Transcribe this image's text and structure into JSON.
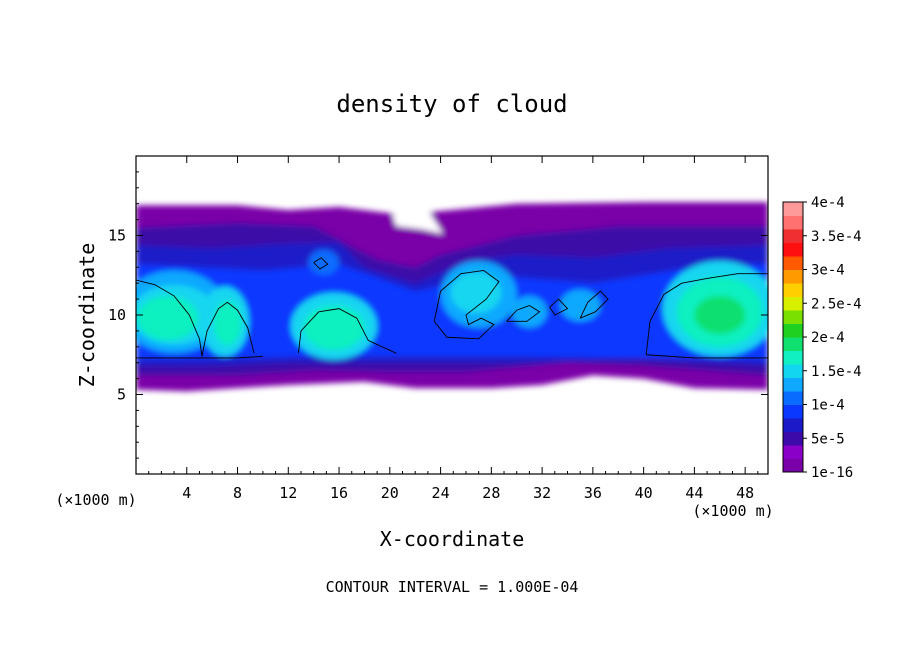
{
  "chart_data": {
    "type": "heatmap",
    "title": "density of cloud",
    "xlabel": "X-coordinate",
    "ylabel": "Z-coordinate",
    "x_unit": "(×1000 m)",
    "y_unit": "(×1000 m)",
    "xlim": [
      0,
      49.8
    ],
    "ylim": [
      0,
      20
    ],
    "x_ticks": [
      4,
      8,
      12,
      16,
      20,
      24,
      28,
      32,
      36,
      40,
      44,
      48
    ],
    "y_ticks": [
      5,
      10,
      15
    ],
    "footer": "CONTOUR INTERVAL = 1.000E-04",
    "contour_levels": [
      0.0001
    ],
    "colorbar": {
      "ticks": [
        {
          "label": "1e-16",
          "value": 1e-16
        },
        {
          "label": "5e-5",
          "value": 5e-05
        },
        {
          "label": "1e-4",
          "value": 0.0001
        },
        {
          "label": "1.5e-4",
          "value": 0.00015
        },
        {
          "label": "2e-4",
          "value": 0.0002
        },
        {
          "label": "2.5e-4",
          "value": 0.00025
        },
        {
          "label": "3e-4",
          "value": 0.0003
        },
        {
          "label": "3.5e-4",
          "value": 0.00035
        },
        {
          "label": "4e-4",
          "value": 0.0004
        }
      ],
      "colors": [
        "#7a00a8",
        "#8a00c8",
        "#3c0aa8",
        "#1a1ac8",
        "#0a38ff",
        "#0a6cff",
        "#0ea8ff",
        "#12d6f0",
        "#10f0c0",
        "#10e070",
        "#20d020",
        "#7ae000",
        "#d8f000",
        "#ffd000",
        "#ff9a00",
        "#ff5a00",
        "#ff1010",
        "#f03030",
        "#ff7070",
        "#ff9a9a"
      ]
    }
  }
}
